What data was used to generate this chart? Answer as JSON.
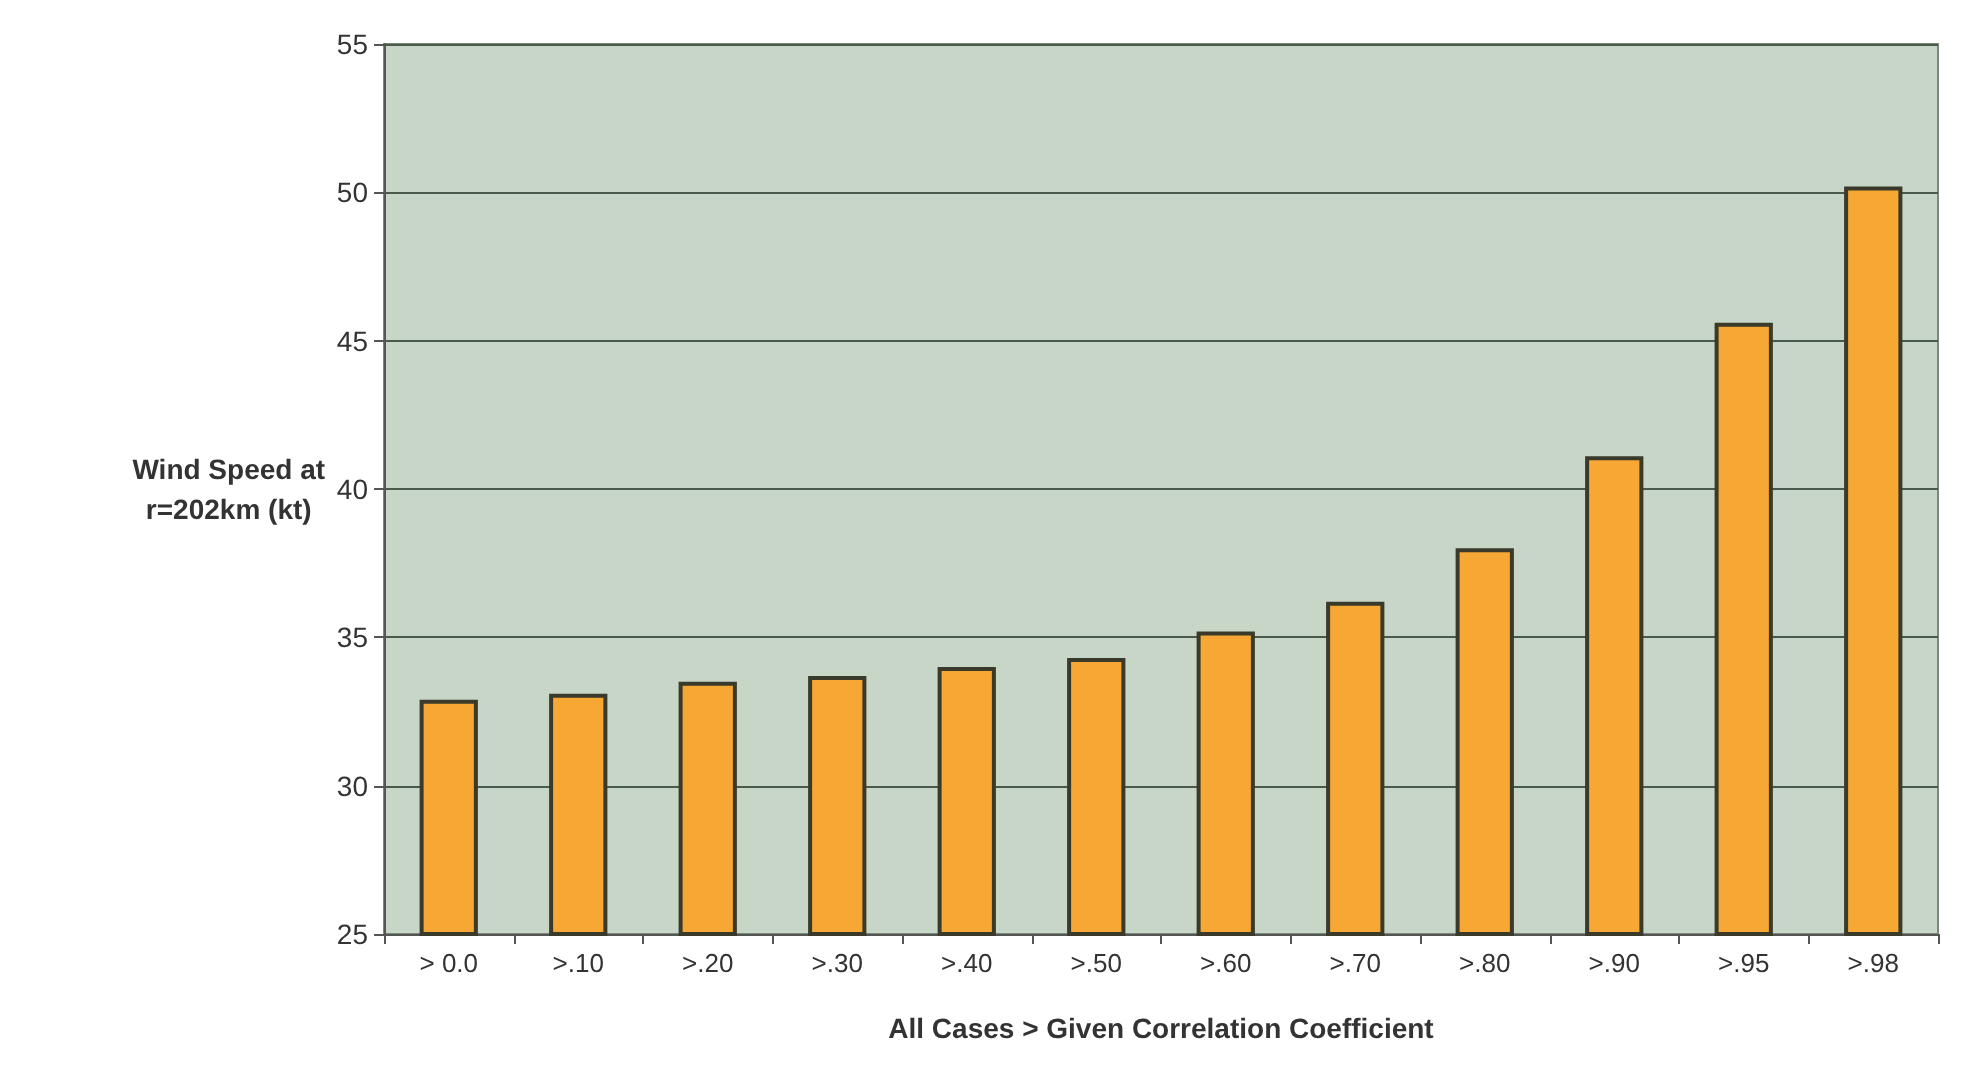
{
  "chart_data": {
    "type": "bar",
    "xlabel": "All Cases > Given Correlation Coefficient",
    "ylabel": "Wind Speed at\nr=202km (kt)",
    "categories": [
      "> 0.0",
      ">.10",
      ">.20",
      ">.30",
      ">.40",
      ">.50",
      ">.60",
      ">.70",
      ">.80",
      ">.90",
      ">.95",
      ">.98"
    ],
    "values": [
      32.9,
      33.1,
      33.5,
      33.7,
      34.0,
      34.3,
      35.2,
      36.2,
      38.0,
      41.1,
      45.6,
      50.2
    ],
    "color": "#f7a733",
    "ylim": [
      25,
      55
    ],
    "yticks": [
      25,
      30,
      35,
      40,
      45,
      50,
      55
    ],
    "grid": "y"
  }
}
